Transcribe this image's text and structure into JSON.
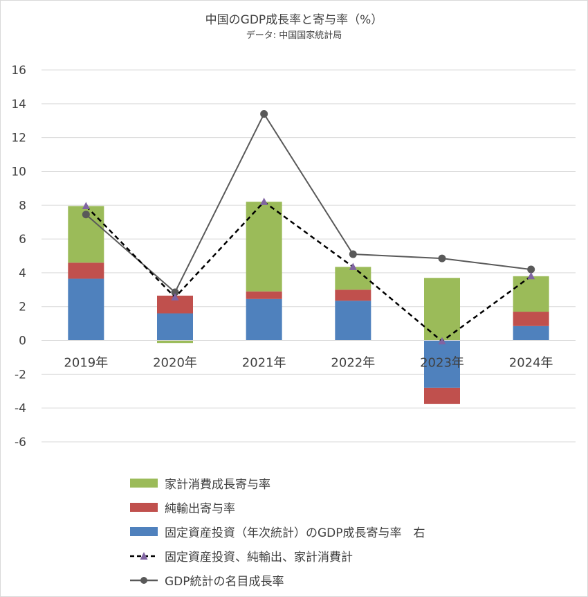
{
  "chart_data": {
    "type": "bar",
    "title": "中国のGDP成長率と寄与率（%）",
    "subtitle": "データ: 中国国家統計局",
    "categories": [
      "2019年",
      "2020年",
      "2021年",
      "2022年",
      "2023年",
      "2024年"
    ],
    "ylim": [
      -6,
      16
    ],
    "yticks": [
      "16",
      "14",
      "12",
      "10",
      "8",
      "6",
      "4",
      "2",
      "0",
      "-2",
      "-4",
      "-6"
    ],
    "grid": true,
    "legend_position": "bottom",
    "series": [
      {
        "name": "家計消費成長寄与率",
        "kind": "stacked-bar",
        "color": "#9bbb59",
        "values": [
          3.35,
          -0.15,
          5.3,
          1.35,
          3.7,
          2.1
        ]
      },
      {
        "name": "純輸出寄与率",
        "kind": "stacked-bar",
        "color": "#c0504d",
        "values": [
          0.95,
          1.05,
          0.45,
          0.65,
          -0.95,
          0.85
        ]
      },
      {
        "name": "固定資産投資（年次統計）のGDP成長寄与率　右",
        "kind": "stacked-bar",
        "color": "#4f81bd",
        "values": [
          3.65,
          1.6,
          2.45,
          2.35,
          -2.8,
          0.85
        ]
      },
      {
        "name": "固定資産投資、純輸出、家計消費計",
        "kind": "dashed-line-triangle",
        "color": "#000000",
        "marker_color": "#8064a2",
        "values": [
          7.95,
          2.55,
          8.2,
          4.35,
          -0.05,
          3.8
        ]
      },
      {
        "name": "GDP統計の名目成長率",
        "kind": "line-circle",
        "color": "#595959",
        "marker_color": "#595959",
        "values": [
          7.45,
          2.85,
          13.4,
          5.1,
          4.85,
          4.2
        ]
      }
    ]
  }
}
